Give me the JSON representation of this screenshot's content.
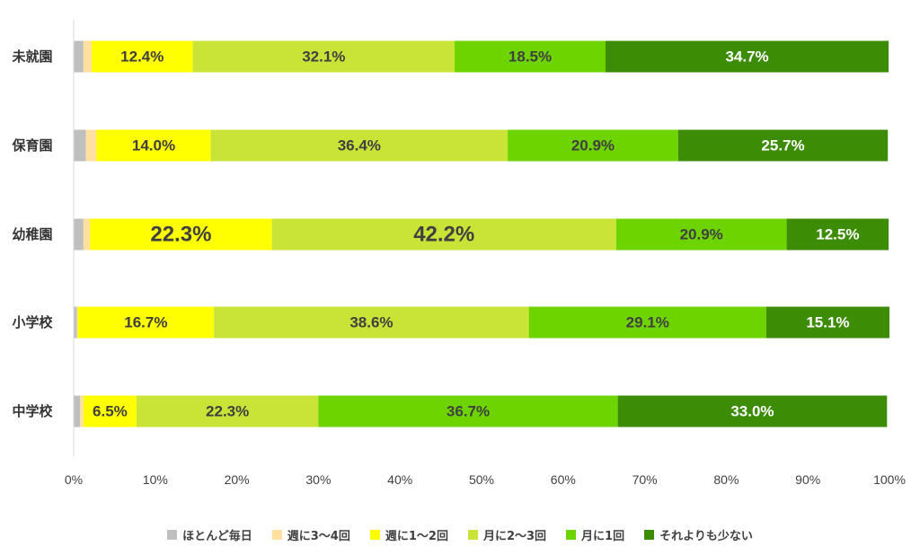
{
  "chart_data": {
    "type": "bar",
    "orientation": "horizontal",
    "stacked": true,
    "categories": [
      "未就園",
      "保育園",
      "幼稚園",
      "小学校",
      "中学校"
    ],
    "series": [
      {
        "name": "ほとんど毎日",
        "color": "#bfbfbf",
        "values": [
          1.2,
          1.5,
          1.2,
          0.4,
          0.8
        ]
      },
      {
        "name": "週に3～4回",
        "color": "#ffe0a0",
        "values": [
          1.0,
          1.3,
          0.8,
          0.1,
          0.4
        ]
      },
      {
        "name": "週に1～2回",
        "color": "#ffff00",
        "values": [
          12.4,
          14.0,
          22.3,
          16.7,
          6.5
        ]
      },
      {
        "name": "月に2～3回",
        "color": "#c9e436",
        "values": [
          32.1,
          36.4,
          42.2,
          38.6,
          22.3
        ]
      },
      {
        "name": "月に1回",
        "color": "#6dd400",
        "values": [
          18.5,
          20.9,
          20.9,
          29.1,
          36.7
        ]
      },
      {
        "name": "それよりも少ない",
        "color": "#3d8c05",
        "values": [
          34.7,
          25.7,
          12.5,
          15.1,
          33.0
        ]
      }
    ],
    "data_labels": [
      [
        "",
        "",
        "12.4%",
        "32.1%",
        "18.5%",
        "34.7%"
      ],
      [
        "",
        "",
        "14.0%",
        "36.4%",
        "20.9%",
        "25.7%"
      ],
      [
        "",
        "",
        "22.3%",
        "42.2%",
        "20.9%",
        "12.5%"
      ],
      [
        "",
        "",
        "16.7%",
        "38.6%",
        "29.1%",
        "15.1%"
      ],
      [
        "",
        "",
        "6.5%",
        "22.3%",
        "36.7%",
        "33.0%"
      ]
    ],
    "emphasized_labels": [
      [
        2,
        2
      ],
      [
        2,
        3
      ]
    ],
    "x_ticks": [
      "0%",
      "10%",
      "20%",
      "30%",
      "40%",
      "50%",
      "60%",
      "70%",
      "80%",
      "90%",
      "100%"
    ],
    "xlim": [
      0,
      100
    ],
    "grid": false,
    "legend_position": "bottom"
  }
}
